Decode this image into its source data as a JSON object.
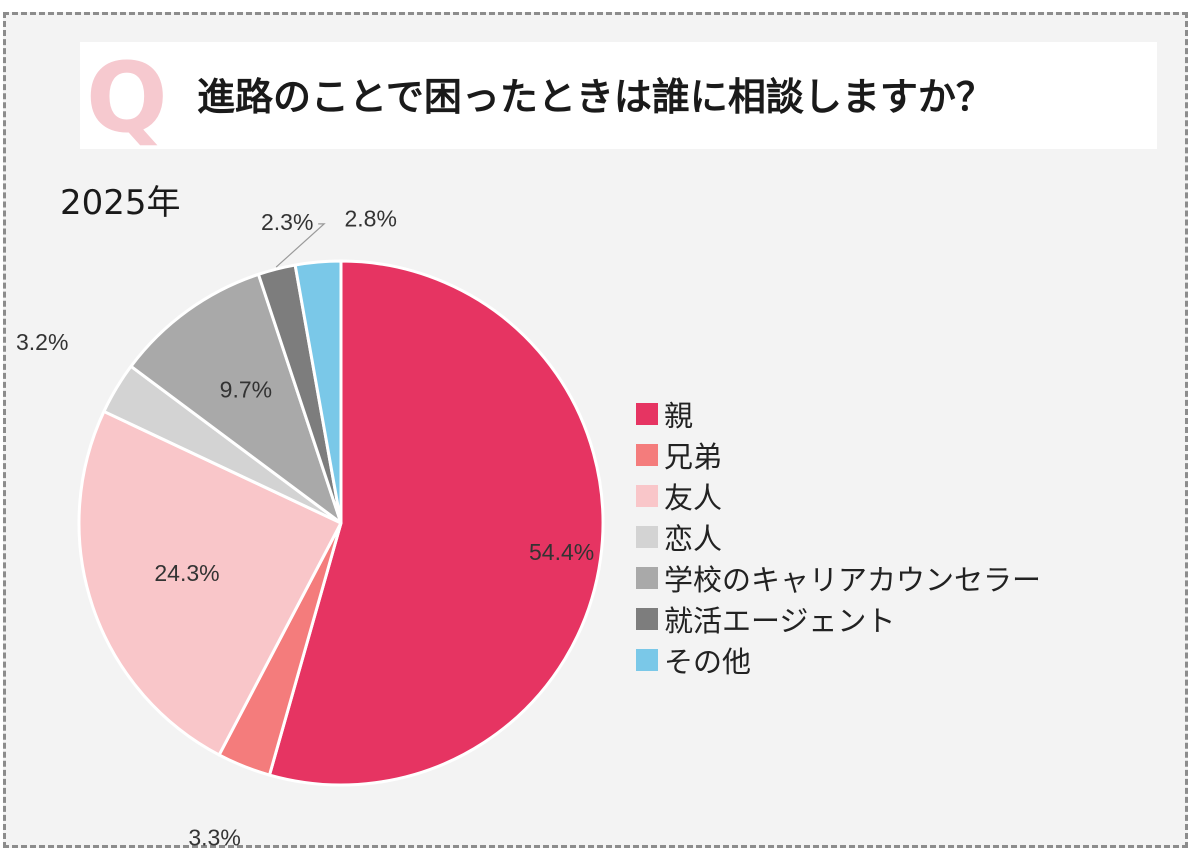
{
  "header": {
    "q_letter": "Q",
    "question": "進路のことで困ったときは誰に相談しますか？"
  },
  "chart_data": {
    "type": "pie",
    "subtitle": "2025年",
    "slices": [
      {
        "label": "親",
        "value": 54.4,
        "display": "54.4%",
        "color": "#e63462"
      },
      {
        "label": "兄弟",
        "value": 3.3,
        "display": "3.3%",
        "color": "#f47c7c"
      },
      {
        "label": "友人",
        "value": 24.3,
        "display": "24.3%",
        "color": "#f9c6c9"
      },
      {
        "label": "恋人",
        "value": 3.2,
        "display": "3.2%",
        "color": "#d3d3d3"
      },
      {
        "label": "学校のキャリアカウンセラー",
        "value": 9.7,
        "display": "9.7%",
        "color": "#a9a9a9"
      },
      {
        "label": "就活エージェント",
        "value": 2.3,
        "display": "2.3%",
        "color": "#7d7d7d"
      },
      {
        "label": "その他",
        "value": 2.8,
        "display": "2.8%",
        "color": "#7ac8e8"
      }
    ],
    "legend_position": "right"
  }
}
